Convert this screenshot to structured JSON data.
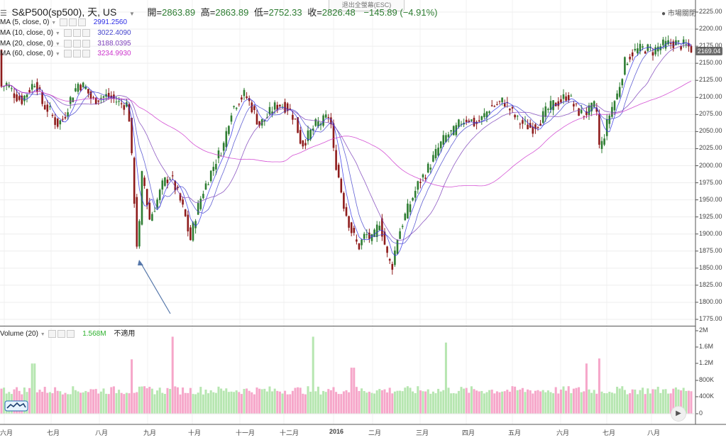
{
  "header": {
    "menu_glyph": "☰",
    "title": "S&P500(sp500), 天, US",
    "open_label": "開=",
    "open_value": "2863.89",
    "high_label": "高=",
    "high_value": "2863.89",
    "low_label": "低=",
    "low_value": "2752.33",
    "close_label": "收=",
    "close_value": "2826.48",
    "change": "−145.89 (−4.91%)"
  },
  "exit_fullscreen": "退出全螢幕(ESC)",
  "market_status": "● 市場關閉",
  "indicators": [
    {
      "label": "MA (5, close, 0)",
      "value": "2991.2560",
      "color": "#2e2ee6"
    },
    {
      "label": "MA (10, close, 0)",
      "value": "3022.4090",
      "color": "#4444cc"
    },
    {
      "label": "MA (20, close, 0)",
      "value": "3188.0395",
      "color": "#7a3db8"
    },
    {
      "label": "MA (60, close, 0)",
      "value": "3234.9930",
      "color": "#cc33cc"
    }
  ],
  "volume_panel": {
    "label": "Volume (20)",
    "value": "1.568M",
    "value_color": "#2bb02b",
    "status": "不適用"
  },
  "last_price_tag": "2169.04",
  "price_axis": [
    "2225.00",
    "2200.00",
    "2175.00",
    "2150.00",
    "2125.00",
    "2100.00",
    "2075.00",
    "2050.00",
    "2025.00",
    "2000.00",
    "1975.00",
    "1950.00",
    "1925.00",
    "1900.00",
    "1875.00",
    "1850.00",
    "1825.00",
    "1800.00",
    "1775.00"
  ],
  "volume_axis": [
    "2M",
    "1.6M",
    "1.2M",
    "800K",
    "400K",
    "0"
  ],
  "months": [
    "六月",
    "七月",
    "八月",
    "九月",
    "十月",
    "十一月",
    "十二月",
    "2016",
    "二月",
    "三月",
    "四月",
    "五月",
    "六月",
    "七月",
    "八月"
  ],
  "colors": {
    "up": "#2e7d32",
    "down": "#8e1b1b",
    "vol_up": "#b6e6b0",
    "vol_down": "#f6a6c9",
    "arrow": "#5577aa"
  },
  "chart_data": {
    "type": "candlestick",
    "title": "S&P500(sp500), 天, US",
    "ylim": [
      1765,
      2232
    ],
    "price_path": [
      [
        0,
        2115
      ],
      [
        10,
        2120
      ],
      [
        20,
        2105
      ],
      [
        30,
        2095
      ],
      [
        40,
        2110
      ],
      [
        50,
        2125
      ],
      [
        60,
        2090
      ],
      [
        70,
        2080
      ],
      [
        80,
        2060
      ],
      [
        90,
        2070
      ],
      [
        100,
        2100
      ],
      [
        110,
        2120
      ],
      [
        120,
        2115
      ],
      [
        130,
        2095
      ],
      [
        140,
        2100
      ],
      [
        150,
        2102
      ],
      [
        160,
        2098
      ],
      [
        170,
        2090
      ],
      [
        180,
        2090
      ],
      [
        184,
        2050
      ],
      [
        186,
        2000
      ],
      [
        189,
        1955
      ],
      [
        192,
        1880
      ],
      [
        196,
        1905
      ],
      [
        200,
        1985
      ],
      [
        205,
        1965
      ],
      [
        210,
        1920
      ],
      [
        220,
        1945
      ],
      [
        230,
        1975
      ],
      [
        240,
        1985
      ],
      [
        250,
        1960
      ],
      [
        260,
        1930
      ],
      [
        268,
        1890
      ],
      [
        275,
        1925
      ],
      [
        285,
        1960
      ],
      [
        295,
        1985
      ],
      [
        305,
        2010
      ],
      [
        315,
        2030
      ],
      [
        325,
        2080
      ],
      [
        335,
        2095
      ],
      [
        345,
        2105
      ],
      [
        355,
        2085
      ],
      [
        365,
        2060
      ],
      [
        375,
        2070
      ],
      [
        385,
        2085
      ],
      [
        395,
        2090
      ],
      [
        405,
        2085
      ],
      [
        415,
        2070
      ],
      [
        425,
        2030
      ],
      [
        435,
        2045
      ],
      [
        445,
        2060
      ],
      [
        455,
        2065
      ],
      [
        465,
        2075
      ],
      [
        470,
        2020
      ],
      [
        476,
        1990
      ],
      [
        485,
        1940
      ],
      [
        495,
        1905
      ],
      [
        505,
        1880
      ],
      [
        515,
        1900
      ],
      [
        525,
        1890
      ],
      [
        535,
        1920
      ],
      [
        545,
        1870
      ],
      [
        552,
        1850
      ],
      [
        560,
        1895
      ],
      [
        570,
        1925
      ],
      [
        580,
        1950
      ],
      [
        590,
        1975
      ],
      [
        600,
        1990
      ],
      [
        610,
        2010
      ],
      [
        620,
        2030
      ],
      [
        630,
        2045
      ],
      [
        640,
        2050
      ],
      [
        650,
        2065
      ],
      [
        660,
        2070
      ],
      [
        670,
        2060
      ],
      [
        680,
        2070
      ],
      [
        690,
        2085
      ],
      [
        700,
        2090
      ],
      [
        710,
        2095
      ],
      [
        720,
        2080
      ],
      [
        730,
        2065
      ],
      [
        740,
        2060
      ],
      [
        750,
        2055
      ],
      [
        760,
        2065
      ],
      [
        770,
        2080
      ],
      [
        780,
        2090
      ],
      [
        790,
        2095
      ],
      [
        800,
        2105
      ],
      [
        810,
        2085
      ],
      [
        820,
        2075
      ],
      [
        830,
        2080
      ],
      [
        840,
        2090
      ],
      [
        845,
        2020
      ],
      [
        850,
        2040
      ],
      [
        860,
        2080
      ],
      [
        870,
        2105
      ],
      [
        880,
        2150
      ],
      [
        890,
        2165
      ],
      [
        900,
        2170
      ],
      [
        910,
        2172
      ],
      [
        920,
        2168
      ],
      [
        930,
        2175
      ],
      [
        940,
        2178
      ],
      [
        950,
        2180
      ],
      [
        960,
        2177
      ],
      [
        970,
        2174
      ],
      [
        978,
        2169
      ]
    ],
    "volume_level": 0.28,
    "volume_spikes": [
      [
        47,
        0.6
      ],
      [
        186,
        0.65
      ],
      [
        243,
        0.92
      ],
      [
        441,
        0.92
      ],
      [
        497,
        0.55
      ],
      [
        630,
        0.85
      ],
      [
        843,
        0.66
      ],
      [
        825,
        0.6
      ]
    ]
  }
}
